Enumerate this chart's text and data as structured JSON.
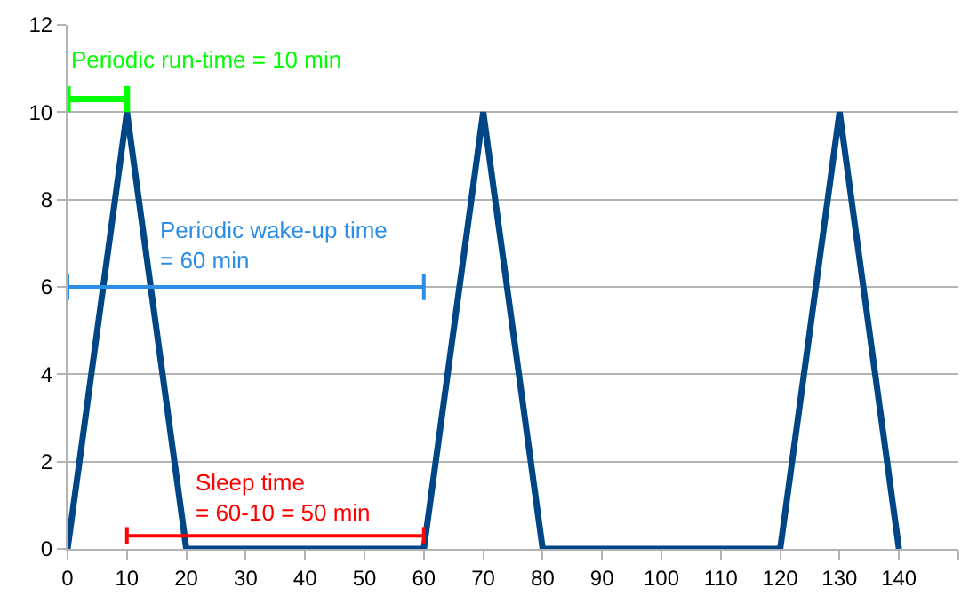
{
  "chart_data": {
    "type": "line",
    "xlim": [
      0,
      150
    ],
    "xticks": [
      0,
      10,
      20,
      30,
      40,
      50,
      60,
      70,
      80,
      90,
      100,
      110,
      120,
      130,
      140,
      {
        "value": 150,
        "label": null
      }
    ],
    "ylim": [
      0,
      12
    ],
    "yticks": [
      0,
      2,
      4,
      6,
      8,
      10,
      12
    ],
    "grid": "y",
    "marker": "none",
    "series": [
      {
        "color": "#004586",
        "x": [
          0,
          10,
          20,
          60,
          70,
          80,
          120,
          130,
          140
        ],
        "values": [
          0,
          10,
          0,
          0,
          10,
          0,
          0,
          10,
          0
        ]
      },
      {
        "color": "#00ff00",
        "x": [
          0,
          10
        ],
        "values": [
          10.3,
          10.3
        ],
        "errors": [
          0.3,
          0.3
        ]
      },
      {
        "color": "#2a8ee8",
        "x": [
          0,
          60
        ],
        "values": [
          6,
          6
        ],
        "errors": [
          0.3,
          0.3
        ]
      },
      {
        "color": "#ff0000",
        "x": [
          10,
          60
        ],
        "values": [
          0.3,
          0.3
        ],
        "errors": [
          0.2,
          0.2
        ]
      }
    ],
    "annotations": [
      "Periodic run-time = 10 min",
      "Periodic wake-up time\n= 60 min",
      "Sleep time\n= 60-10 = 50 min"
    ]
  }
}
